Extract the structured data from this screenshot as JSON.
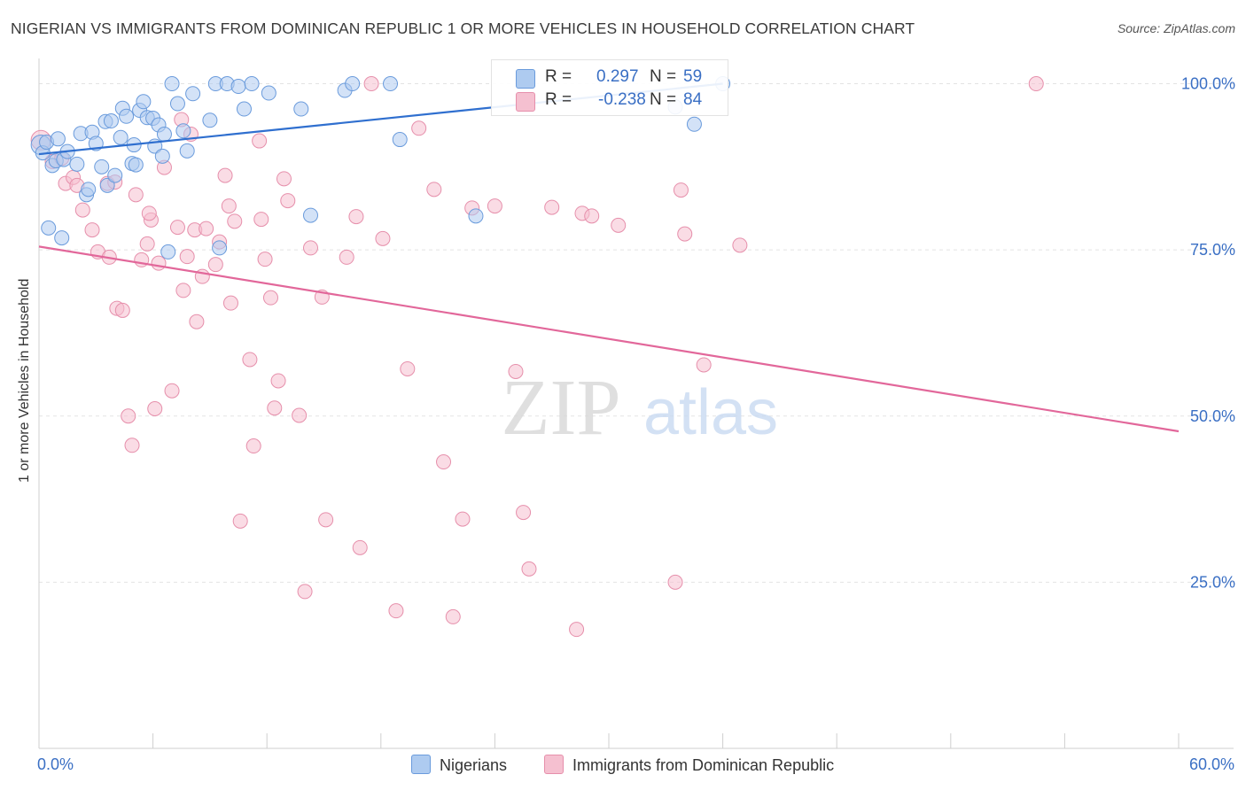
{
  "title": "NIGERIAN VS IMMIGRANTS FROM DOMINICAN REPUBLIC 1 OR MORE VEHICLES IN HOUSEHOLD CORRELATION CHART",
  "source": "Source: ZipAtlas.com",
  "watermark": {
    "zip": "ZIP",
    "atlas": "atlas"
  },
  "legend_top": {
    "rows": [
      {
        "r_label": "R =",
        "r_value": "0.297",
        "n_label": "N =",
        "n_value": "59"
      },
      {
        "r_label": "R =",
        "r_value": "-0.238",
        "n_label": "N =",
        "n_value": "84"
      }
    ]
  },
  "legend_bottom": {
    "series1": "Nigerians",
    "series2": "Immigrants from Dominican Republic"
  },
  "colors": {
    "blue_fill": "#aecbf0",
    "blue_stroke": "#6a9bdc",
    "blue_line": "#2f6fcf",
    "pink_fill": "#f5c0d0",
    "pink_stroke": "#e68fab",
    "pink_line": "#e2679a",
    "axis_label": "#3a6fc4",
    "grid": "#e3e3e3"
  },
  "chart_data": {
    "type": "scatter",
    "title": "NIGERIAN VS IMMIGRANTS FROM DOMINICAN REPUBLIC 1 OR MORE VEHICLES IN HOUSEHOLD CORRELATION CHART",
    "xlabel": "",
    "ylabel": "1 or more Vehicles in Household",
    "xlim": [
      0,
      60
    ],
    "ylim": [
      0,
      103
    ],
    "x_tick_labels": [
      "0.0%",
      "60.0%"
    ],
    "y_ticks": [
      100,
      75,
      50,
      25
    ],
    "y_tick_labels": [
      "100.0%",
      "75.0%",
      "50.0%",
      "25.0%"
    ],
    "grid": true,
    "series": [
      {
        "name": "Nigerians",
        "r": 0.297,
        "n": 59,
        "trend": {
          "x": [
            0,
            36
          ],
          "y": [
            89.4,
            100.0
          ]
        },
        "points": [
          [
            0.1,
            90.8
          ],
          [
            0.2,
            89.6
          ],
          [
            0.4,
            91.2
          ],
          [
            0.5,
            78.3
          ],
          [
            0.7,
            87.7
          ],
          [
            0.9,
            88.4
          ],
          [
            1.0,
            91.7
          ],
          [
            1.2,
            76.8
          ],
          [
            1.3,
            88.6
          ],
          [
            1.5,
            89.8
          ],
          [
            2.0,
            87.9
          ],
          [
            2.2,
            92.5
          ],
          [
            2.5,
            83.3
          ],
          [
            2.6,
            84.1
          ],
          [
            2.8,
            92.7
          ],
          [
            3.0,
            91.0
          ],
          [
            3.3,
            87.5
          ],
          [
            3.5,
            94.3
          ],
          [
            3.6,
            84.7
          ],
          [
            3.8,
            94.4
          ],
          [
            4.0,
            86.2
          ],
          [
            4.3,
            91.9
          ],
          [
            4.4,
            96.3
          ],
          [
            4.6,
            95.1
          ],
          [
            4.9,
            88.0
          ],
          [
            5.0,
            90.8
          ],
          [
            5.1,
            87.8
          ],
          [
            5.3,
            96.0
          ],
          [
            5.5,
            97.3
          ],
          [
            5.7,
            94.9
          ],
          [
            6.0,
            94.8
          ],
          [
            6.1,
            90.6
          ],
          [
            6.3,
            93.8
          ],
          [
            6.5,
            89.1
          ],
          [
            6.6,
            92.4
          ],
          [
            6.8,
            74.7
          ],
          [
            7.0,
            100.0
          ],
          [
            7.3,
            97.0
          ],
          [
            7.6,
            92.9
          ],
          [
            7.8,
            89.9
          ],
          [
            8.1,
            98.5
          ],
          [
            9.0,
            94.5
          ],
          [
            9.3,
            100.0
          ],
          [
            9.5,
            75.3
          ],
          [
            9.9,
            100.0
          ],
          [
            10.5,
            99.6
          ],
          [
            10.8,
            96.2
          ],
          [
            11.2,
            100.0
          ],
          [
            12.1,
            98.6
          ],
          [
            13.8,
            96.2
          ],
          [
            14.3,
            80.2
          ],
          [
            16.1,
            99.0
          ],
          [
            16.5,
            100.0
          ],
          [
            18.5,
            100.0
          ],
          [
            19.0,
            91.6
          ],
          [
            23.0,
            80.1
          ],
          [
            36.0,
            100.0
          ],
          [
            34.5,
            93.9
          ],
          [
            33.5,
            96.5
          ]
        ]
      },
      {
        "name": "Immigrants from Dominican Republic",
        "r": -0.238,
        "n": 84,
        "trend": {
          "x": [
            0,
            60
          ],
          "y": [
            75.5,
            47.7
          ]
        },
        "points": [
          [
            0.1,
            91.5
          ],
          [
            0.7,
            88.3
          ],
          [
            1.2,
            88.8
          ],
          [
            1.4,
            85.0
          ],
          [
            1.8,
            85.9
          ],
          [
            2.0,
            84.7
          ],
          [
            2.3,
            81.0
          ],
          [
            2.8,
            78.0
          ],
          [
            3.1,
            74.7
          ],
          [
            3.6,
            85.0
          ],
          [
            3.7,
            73.9
          ],
          [
            4.0,
            85.2
          ],
          [
            4.1,
            66.2
          ],
          [
            4.4,
            65.9
          ],
          [
            4.7,
            50.0
          ],
          [
            4.9,
            45.6
          ],
          [
            5.1,
            83.3
          ],
          [
            5.4,
            73.5
          ],
          [
            5.7,
            75.9
          ],
          [
            5.9,
            79.5
          ],
          [
            6.1,
            51.1
          ],
          [
            6.3,
            73.0
          ],
          [
            6.6,
            87.4
          ],
          [
            7.0,
            53.8
          ],
          [
            7.3,
            78.4
          ],
          [
            7.5,
            94.6
          ],
          [
            7.6,
            68.9
          ],
          [
            7.8,
            74.0
          ],
          [
            8.0,
            92.4
          ],
          [
            8.2,
            78.0
          ],
          [
            8.3,
            64.2
          ],
          [
            8.8,
            78.2
          ],
          [
            9.3,
            72.8
          ],
          [
            9.5,
            76.2
          ],
          [
            9.8,
            86.2
          ],
          [
            10.1,
            67.0
          ],
          [
            10.3,
            79.3
          ],
          [
            10.6,
            34.2
          ],
          [
            11.1,
            58.5
          ],
          [
            11.3,
            45.5
          ],
          [
            11.6,
            91.4
          ],
          [
            11.7,
            79.6
          ],
          [
            11.9,
            73.6
          ],
          [
            12.2,
            67.8
          ],
          [
            12.4,
            51.2
          ],
          [
            12.6,
            55.3
          ],
          [
            12.9,
            85.7
          ],
          [
            13.1,
            82.4
          ],
          [
            13.7,
            50.1
          ],
          [
            14.0,
            23.6
          ],
          [
            14.3,
            75.3
          ],
          [
            14.9,
            67.9
          ],
          [
            15.1,
            34.4
          ],
          [
            16.2,
            73.9
          ],
          [
            16.7,
            80.0
          ],
          [
            16.9,
            30.2
          ],
          [
            17.5,
            100.0
          ],
          [
            18.1,
            76.7
          ],
          [
            18.8,
            20.7
          ],
          [
            19.4,
            57.1
          ],
          [
            20.0,
            93.3
          ],
          [
            20.8,
            84.1
          ],
          [
            21.3,
            43.1
          ],
          [
            21.8,
            19.8
          ],
          [
            22.3,
            34.5
          ],
          [
            22.8,
            81.3
          ],
          [
            24.0,
            81.6
          ],
          [
            25.1,
            56.7
          ],
          [
            25.5,
            35.5
          ],
          [
            25.8,
            27.0
          ],
          [
            27.0,
            81.4
          ],
          [
            28.3,
            17.9
          ],
          [
            28.6,
            80.5
          ],
          [
            29.1,
            80.1
          ],
          [
            30.5,
            78.7
          ],
          [
            33.5,
            25.0
          ],
          [
            33.8,
            84.0
          ],
          [
            34.0,
            77.4
          ],
          [
            35.0,
            57.7
          ],
          [
            36.9,
            75.7
          ],
          [
            52.5,
            100.0
          ],
          [
            5.8,
            80.5
          ],
          [
            10.0,
            81.6
          ],
          [
            8.6,
            71.0
          ]
        ]
      }
    ]
  }
}
